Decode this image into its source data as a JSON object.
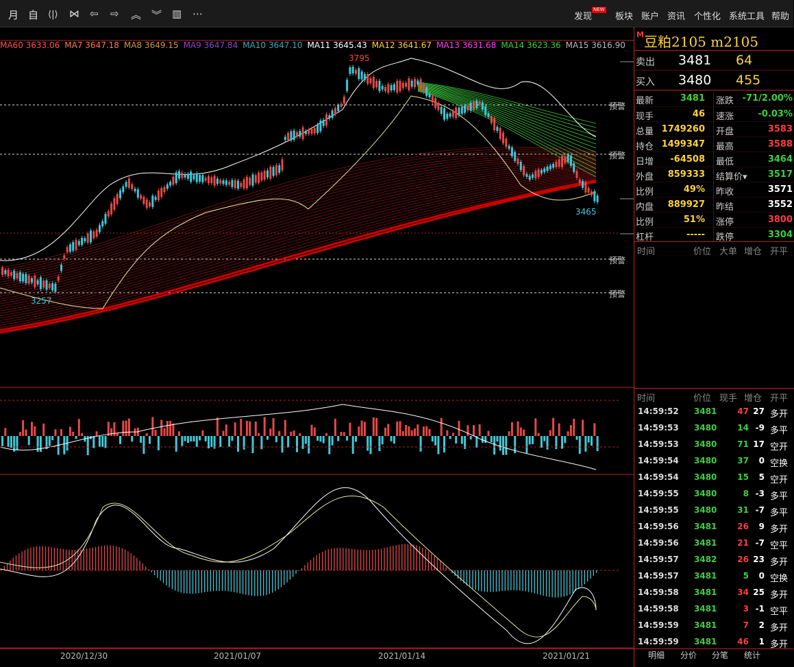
{
  "toolbar": {
    "icons": [
      {
        "name": "month-period-button",
        "glyph": "月"
      },
      {
        "name": "day-period-button",
        "glyph": "自"
      },
      {
        "name": "zoom-in-button",
        "glyph": "⟨|⟩"
      },
      {
        "name": "zoom-out-button",
        "glyph": "⋈"
      },
      {
        "name": "move-left-button",
        "glyph": "⇦"
      },
      {
        "name": "move-right-button",
        "glyph": "⇨"
      },
      {
        "name": "up-button",
        "glyph": "︽"
      },
      {
        "name": "down-button",
        "glyph": "︾"
      },
      {
        "name": "layout-button",
        "glyph": "▥"
      },
      {
        "name": "more-button",
        "glyph": "⋯"
      }
    ],
    "menu": {
      "discover": "发现",
      "new_badge": "NEW",
      "sector": "板块",
      "account": "账户",
      "news": "资讯",
      "personal": "个性化",
      "system": "系统工具",
      "help": "帮助"
    }
  },
  "legend": {
    "items": [
      {
        "label": "MA60",
        "value": "3633.06",
        "color": "#ff5050"
      },
      {
        "label": "MA7",
        "value": "3647.18",
        "color": "#ff7a50"
      },
      {
        "label": "MA8",
        "value": "3649.15",
        "color": "#c89a4a"
      },
      {
        "label": "MA9",
        "value": "3647.84",
        "color": "#9040d0"
      },
      {
        "label": "MA10",
        "value": "3647.10",
        "color": "#3fa8b8"
      },
      {
        "label": "MA11",
        "value": "3645.43",
        "color": "#ffffff"
      },
      {
        "label": "MA12",
        "value": "3641.67",
        "color": "#ffd23a"
      },
      {
        "label": "MA13",
        "value": "3631.68",
        "color": "#ff3cff"
      },
      {
        "label": "MA14",
        "value": "3623.36",
        "color": "#3cd03c"
      },
      {
        "label": "MA15",
        "value": "3616.90",
        "color": "#bbbbbb"
      }
    ]
  },
  "chart_labels": {
    "high": "3795",
    "low_recent": "3465",
    "low_left": "3257",
    "warn": "预警"
  },
  "x_axis": {
    "dates": [
      "2020/12/30",
      "2021/01/07",
      "2021/01/14",
      "2021/01/21"
    ]
  },
  "quote": {
    "marker": "M",
    "title": "豆粕2105  m2105",
    "sell": {
      "label": "卖出",
      "price": "3481",
      "vol": "64"
    },
    "buy": {
      "label": "买入",
      "price": "3480",
      "vol": "455"
    },
    "rows": [
      {
        "l1": "最新",
        "v1": "3481",
        "c1": "#3cd03c",
        "l2": "涨跌",
        "v2": "-71/2.00%",
        "c2": "#3cd03c"
      },
      {
        "l1": "现手",
        "v1": "46",
        "c1": "#ffd23a",
        "l2": "速涨",
        "v2": "-0.03%",
        "c2": "#3cd03c"
      },
      {
        "l1": "总量",
        "v1": "1749260",
        "c1": "#ffd23a",
        "l2": "开盘",
        "v2": "3583",
        "c2": "#ff3c3c"
      },
      {
        "l1": "持仓",
        "v1": "1499347",
        "c1": "#ffd23a",
        "l2": "最高",
        "v2": "3588",
        "c2": "#ff3c3c"
      },
      {
        "l1": "日增",
        "v1": "-64508",
        "c1": "#ffd23a",
        "l2": "最低",
        "v2": "3464",
        "c2": "#3cd03c"
      },
      {
        "l1": "外盘",
        "v1": "859333",
        "c1": "#ffd23a",
        "l2": "结算价▾",
        "v2": "3517",
        "c2": "#3cd03c"
      },
      {
        "l1": "比例",
        "v1": "49%",
        "c1": "#ffd23a",
        "l2": "昨收",
        "v2": "3571",
        "c2": "#ffffff"
      },
      {
        "l1": "内盘",
        "v1": "889927",
        "c1": "#ffd23a",
        "l2": "昨结",
        "v2": "3552",
        "c2": "#ffffff"
      },
      {
        "l1": "比例",
        "v1": "51%",
        "c1": "#ffd23a",
        "l2": "涨停",
        "v2": "3800",
        "c2": "#ff3c3c"
      },
      {
        "l1": "杠杆",
        "v1": "-----",
        "c1": "#ffd23a",
        "l2": "跌停",
        "v2": "3304",
        "c2": "#3cd03c"
      }
    ]
  },
  "ticks_headers": {
    "time": "时间",
    "price": "价位",
    "qty": "现手",
    "big": "大单",
    "chg": "增仓",
    "type": "开平"
  },
  "ticks": [
    {
      "time": "14:59:52",
      "price": "3481",
      "qty": "47",
      "chg": "27",
      "type": "多开",
      "pc": "#3cd03c",
      "qc": "#ff3c3c",
      "tc": "#ffd23a"
    },
    {
      "time": "14:59:53",
      "price": "3480",
      "qty": "14",
      "chg": "-9",
      "type": "多平",
      "pc": "#3cd03c",
      "qc": "#3cd03c",
      "tc": "#3cd03c"
    },
    {
      "time": "14:59:53",
      "price": "3480",
      "qty": "71",
      "chg": "17",
      "type": "空开",
      "pc": "#3cd03c",
      "qc": "#3cd03c",
      "tc": "#3cd03c"
    },
    {
      "time": "14:59:54",
      "price": "3480",
      "qty": "37",
      "chg": "0",
      "type": "空换",
      "pc": "#3cd03c",
      "qc": "#3cd03c",
      "tc": "#3cd03c"
    },
    {
      "time": "14:59:54",
      "price": "3480",
      "qty": "15",
      "chg": "5",
      "type": "空开",
      "pc": "#3cd03c",
      "qc": "#3cd03c",
      "tc": "#3cd03c"
    },
    {
      "time": "14:59:55",
      "price": "3480",
      "qty": "8",
      "chg": "-3",
      "type": "多平",
      "pc": "#3cd03c",
      "qc": "#3cd03c",
      "tc": "#3cd03c"
    },
    {
      "time": "14:59:55",
      "price": "3480",
      "qty": "31",
      "chg": "-7",
      "type": "多平",
      "pc": "#3cd03c",
      "qc": "#3cd03c",
      "tc": "#3cd03c"
    },
    {
      "time": "14:59:56",
      "price": "3481",
      "qty": "26",
      "chg": "9",
      "type": "多开",
      "pc": "#3cd03c",
      "qc": "#ff3c3c",
      "tc": "#ffd23a"
    },
    {
      "time": "14:59:56",
      "price": "3481",
      "qty": "21",
      "chg": "-7",
      "type": "空平",
      "pc": "#3cd03c",
      "qc": "#ff3c3c",
      "tc": "#ffd23a"
    },
    {
      "time": "14:59:57",
      "price": "3482",
      "qty": "26",
      "chg": "23",
      "type": "多开",
      "pc": "#3cd03c",
      "qc": "#ff3c3c",
      "tc": "#ffd23a"
    },
    {
      "time": "14:59:57",
      "price": "3481",
      "qty": "5",
      "chg": "0",
      "type": "空换",
      "pc": "#3cd03c",
      "qc": "#3cd03c",
      "tc": "#3cd03c"
    },
    {
      "time": "14:59:58",
      "price": "3481",
      "qty": "34",
      "chg": "25",
      "type": "多开",
      "pc": "#3cd03c",
      "qc": "#ff3c3c",
      "tc": "#ffd23a"
    },
    {
      "time": "14:59:58",
      "price": "3481",
      "qty": "3",
      "chg": "-1",
      "type": "空平",
      "pc": "#3cd03c",
      "qc": "#ff3c3c",
      "tc": "#ffd23a"
    },
    {
      "time": "14:59:59",
      "price": "3481",
      "qty": "7",
      "chg": "2",
      "type": "多开",
      "pc": "#3cd03c",
      "qc": "#ff3c3c",
      "tc": "#ffd23a"
    },
    {
      "time": "14:59:59",
      "price": "3481",
      "qty": "46",
      "chg": "1",
      "type": "多开",
      "pc": "#3cd03c",
      "qc": "#ff3c3c",
      "tc": "#ffd23a"
    }
  ],
  "bottom_tabs": {
    "detail": "明细",
    "price": "分价",
    "trades": "分笔",
    "stats": "统计"
  }
}
